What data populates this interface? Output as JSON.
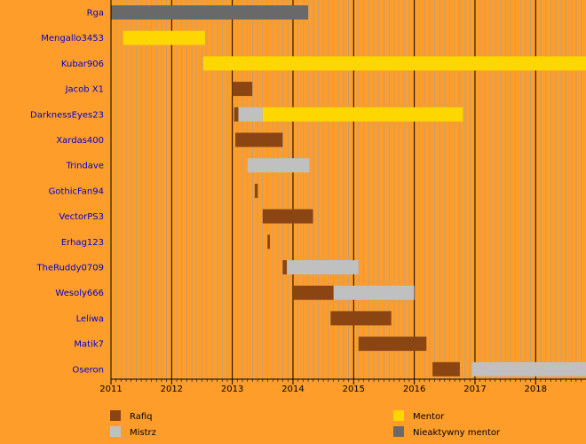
{
  "chart_data": {
    "type": "timeline",
    "xlim": [
      2011,
      2018.83
    ],
    "x_ticks": [
      "2011",
      "2012",
      "2013",
      "2014",
      "2015",
      "2016",
      "2017",
      "2018"
    ],
    "grid": true,
    "colors": {
      "Rafiq": "#8B4513",
      "Mistrz": "#C0C0C0",
      "Mentor": "#FFD700",
      "Nieaktywny mentor": "#696969",
      "background": "#FE9D2A",
      "grid_minor": "#B8A08A",
      "grid_major": "#000000"
    },
    "legend": {
      "placement": "bottom",
      "entries": [
        "Rafiq",
        "Mistrz",
        "Mentor",
        "Nieaktywny mentor"
      ]
    },
    "rows": [
      {
        "name": "Rga",
        "segments": [
          {
            "role": "Nieaktywny mentor",
            "start": 2011.0,
            "end": 2014.25
          }
        ]
      },
      {
        "name": "Mengallo3453",
        "segments": [
          {
            "role": "Mentor",
            "start": 2011.2,
            "end": 2012.55
          }
        ]
      },
      {
        "name": "Kubar906",
        "segments": [
          {
            "role": "Mentor",
            "start": 2012.52,
            "end": 2018.83
          }
        ]
      },
      {
        "name": "Jacob X1",
        "segments": [
          {
            "role": "Rafiq",
            "start": 2013.0,
            "end": 2013.33
          }
        ]
      },
      {
        "name": "DarknessEyes23",
        "segments": [
          {
            "role": "Rafiq",
            "start": 2013.03,
            "end": 2013.1
          },
          {
            "role": "Mistrz",
            "start": 2013.1,
            "end": 2013.5
          },
          {
            "role": "Mentor",
            "start": 2013.5,
            "end": 2016.8
          }
        ]
      },
      {
        "name": "Xardas400",
        "segments": [
          {
            "role": "Rafiq",
            "start": 2013.05,
            "end": 2013.83
          }
        ]
      },
      {
        "name": "Trindave",
        "segments": [
          {
            "role": "Mistrz",
            "start": 2013.25,
            "end": 2014.27
          }
        ]
      },
      {
        "name": "GothicFan94",
        "segments": [
          {
            "role": "Rafiq",
            "start": 2013.37,
            "end": 2013.42
          }
        ]
      },
      {
        "name": "VectorPS3",
        "segments": [
          {
            "role": "Rafiq",
            "start": 2013.5,
            "end": 2014.33
          }
        ]
      },
      {
        "name": "Erhag123",
        "segments": [
          {
            "role": "Rafiq",
            "start": 2013.58,
            "end": 2013.62
          }
        ]
      },
      {
        "name": "TheRuddy0709",
        "segments": [
          {
            "role": "Rafiq",
            "start": 2013.83,
            "end": 2013.9
          },
          {
            "role": "Mistrz",
            "start": 2013.9,
            "end": 2015.08
          }
        ]
      },
      {
        "name": "Wesoly666",
        "segments": [
          {
            "role": "Rafiq",
            "start": 2014.0,
            "end": 2014.67
          },
          {
            "role": "Mistrz",
            "start": 2014.67,
            "end": 2016.0
          }
        ]
      },
      {
        "name": "Leliwa",
        "segments": [
          {
            "role": "Rafiq",
            "start": 2014.62,
            "end": 2015.62
          }
        ]
      },
      {
        "name": "Matik7",
        "segments": [
          {
            "role": "Rafiq",
            "start": 2015.08,
            "end": 2016.2
          }
        ]
      },
      {
        "name": "Oseron",
        "segments": [
          {
            "role": "Rafiq",
            "start": 2016.3,
            "end": 2016.75
          },
          {
            "role": "Mistrz",
            "start": 2016.95,
            "end": 2018.83
          }
        ]
      }
    ]
  }
}
